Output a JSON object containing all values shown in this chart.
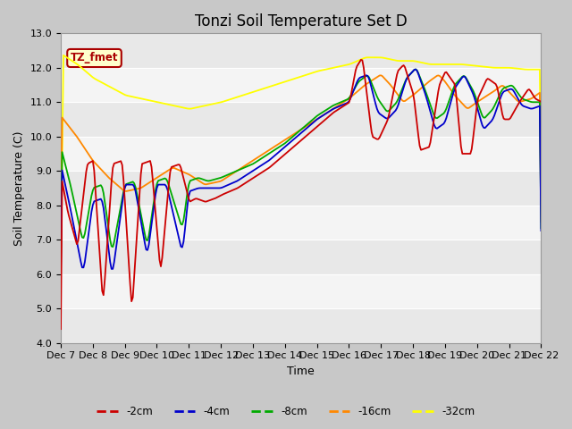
{
  "title": "Tonzi Soil Temperature Set D",
  "xlabel": "Time",
  "ylabel": "Soil Temperature (C)",
  "ylim": [
    4.0,
    13.0
  ],
  "yticks": [
    4.0,
    5.0,
    6.0,
    7.0,
    8.0,
    9.0,
    10.0,
    11.0,
    12.0,
    13.0
  ],
  "series_colors": {
    "-2cm": "#cc0000",
    "-4cm": "#0000cc",
    "-8cm": "#00aa00",
    "-16cm": "#ff8800",
    "-32cm": "#ffff00"
  },
  "legend_label": "TZ_fmet",
  "legend_box_facecolor": "#ffffcc",
  "legend_box_edgecolor": "#aa0000",
  "xtick_labels": [
    "Dec 7",
    "Dec 8",
    "Dec 9",
    "Dec 10",
    "Dec 11",
    "Dec 12",
    "Dec 13",
    "Dec 14",
    "Dec 15",
    "Dec 16",
    "Dec 17",
    "Dec 18",
    "Dec 19",
    "Dec 20",
    "Dec 21",
    "Dec 22"
  ],
  "title_fontsize": 12,
  "axis_label_fontsize": 9,
  "tick_fontsize": 8,
  "fig_bg": "#c8c8c8",
  "plot_bg_light": "#f0f0f0",
  "plot_bg_dark": "#e0e0e0",
  "band_colors": [
    "#e8e8e8",
    "#f4f4f4"
  ]
}
